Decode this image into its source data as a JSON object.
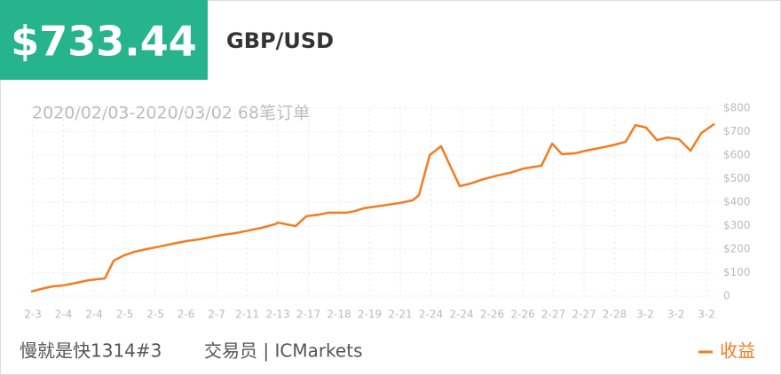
{
  "header": {
    "balance": "$733.44",
    "pair": "GBP/USD"
  },
  "chart_data": {
    "type": "line",
    "subtitle": "2020/02/03-2020/03/02 68笔订单",
    "x": [
      -0.06,
      0.38,
      0.67,
      0.96,
      1.25,
      1.54,
      1.83,
      2.12,
      2.35,
      2.64,
      2.99,
      3.33,
      3.71,
      4.14,
      4.58,
      5.01,
      5.45,
      5.88,
      6.17,
      6.61,
      7.04,
      7.48,
      7.91,
      8.0,
      8.58,
      8.93,
      9.36,
      9.65,
      10.23,
      10.52,
      10.81,
      11.39,
      11.97,
      12.41,
      12.61,
      12.96,
      13.33,
      13.94,
      14.29,
      14.72,
      15.16,
      15.59,
      16.03,
      16.61,
      16.96,
      17.28,
      17.71,
      18.06,
      18.49,
      18.93,
      19.36,
      19.68,
      20.03,
      20.38,
      20.72,
      21.1,
      21.48,
      21.83,
      22.26
    ],
    "series": [
      {
        "name": "收益",
        "color": "#f47b20",
        "values": [
          19,
          34,
          42,
          45,
          52,
          60,
          68,
          72,
          75,
          151,
          174,
          189,
          200,
          211,
          223,
          234,
          242,
          253,
          260,
          268,
          279,
          291,
          306,
          313,
          298,
          340,
          347,
          355,
          355,
          362,
          374,
          385,
          396,
          408,
          430,
          600,
          638,
          468,
          479,
          498,
          513,
          525,
          543,
          555,
          649,
          604,
          608,
          619,
          630,
          642,
          657,
          728,
          717,
          664,
          675,
          668,
          619,
          694,
          733
        ]
      }
    ],
    "xlim": [
      -0.06,
      22.26
    ],
    "xticks": [
      {
        "value": 0,
        "label": "2-3"
      },
      {
        "value": 1,
        "label": "2-4"
      },
      {
        "value": 2,
        "label": "2-4"
      },
      {
        "value": 3,
        "label": "2-5"
      },
      {
        "value": 4,
        "label": "2-5"
      },
      {
        "value": 5,
        "label": "2-6"
      },
      {
        "value": 6,
        "label": "2-7"
      },
      {
        "value": 7,
        "label": "2-11"
      },
      {
        "value": 8,
        "label": "2-13"
      },
      {
        "value": 9,
        "label": "2-17"
      },
      {
        "value": 10,
        "label": "2-18"
      },
      {
        "value": 11,
        "label": "2-19"
      },
      {
        "value": 12,
        "label": "2-21"
      },
      {
        "value": 13,
        "label": "2-24"
      },
      {
        "value": 14,
        "label": "2-24"
      },
      {
        "value": 15,
        "label": "2-26"
      },
      {
        "value": 16,
        "label": "2-26"
      },
      {
        "value": 17,
        "label": "2-27"
      },
      {
        "value": 18,
        "label": "2-27"
      },
      {
        "value": 19,
        "label": "2-28"
      },
      {
        "value": 20,
        "label": "3-2"
      },
      {
        "value": 21,
        "label": "3-2"
      },
      {
        "value": 22,
        "label": "3-2"
      }
    ],
    "ylim": [
      0,
      800
    ],
    "yticks": [
      0,
      {
        "value": 100,
        "label": "$100"
      },
      {
        "value": 200,
        "label": "$200"
      },
      {
        "value": 300,
        "label": "$300"
      },
      {
        "value": 400,
        "label": "$400"
      },
      {
        "value": 500,
        "label": "$500"
      },
      {
        "value": 600,
        "label": "$600"
      },
      {
        "value": 700,
        "label": "$700"
      },
      {
        "value": 800,
        "label": "$800"
      }
    ],
    "grid": true,
    "legend": "bottom-right"
  },
  "footer": {
    "account": "慢就是快1314#3",
    "trader": "交易员 | ICMarkets"
  }
}
